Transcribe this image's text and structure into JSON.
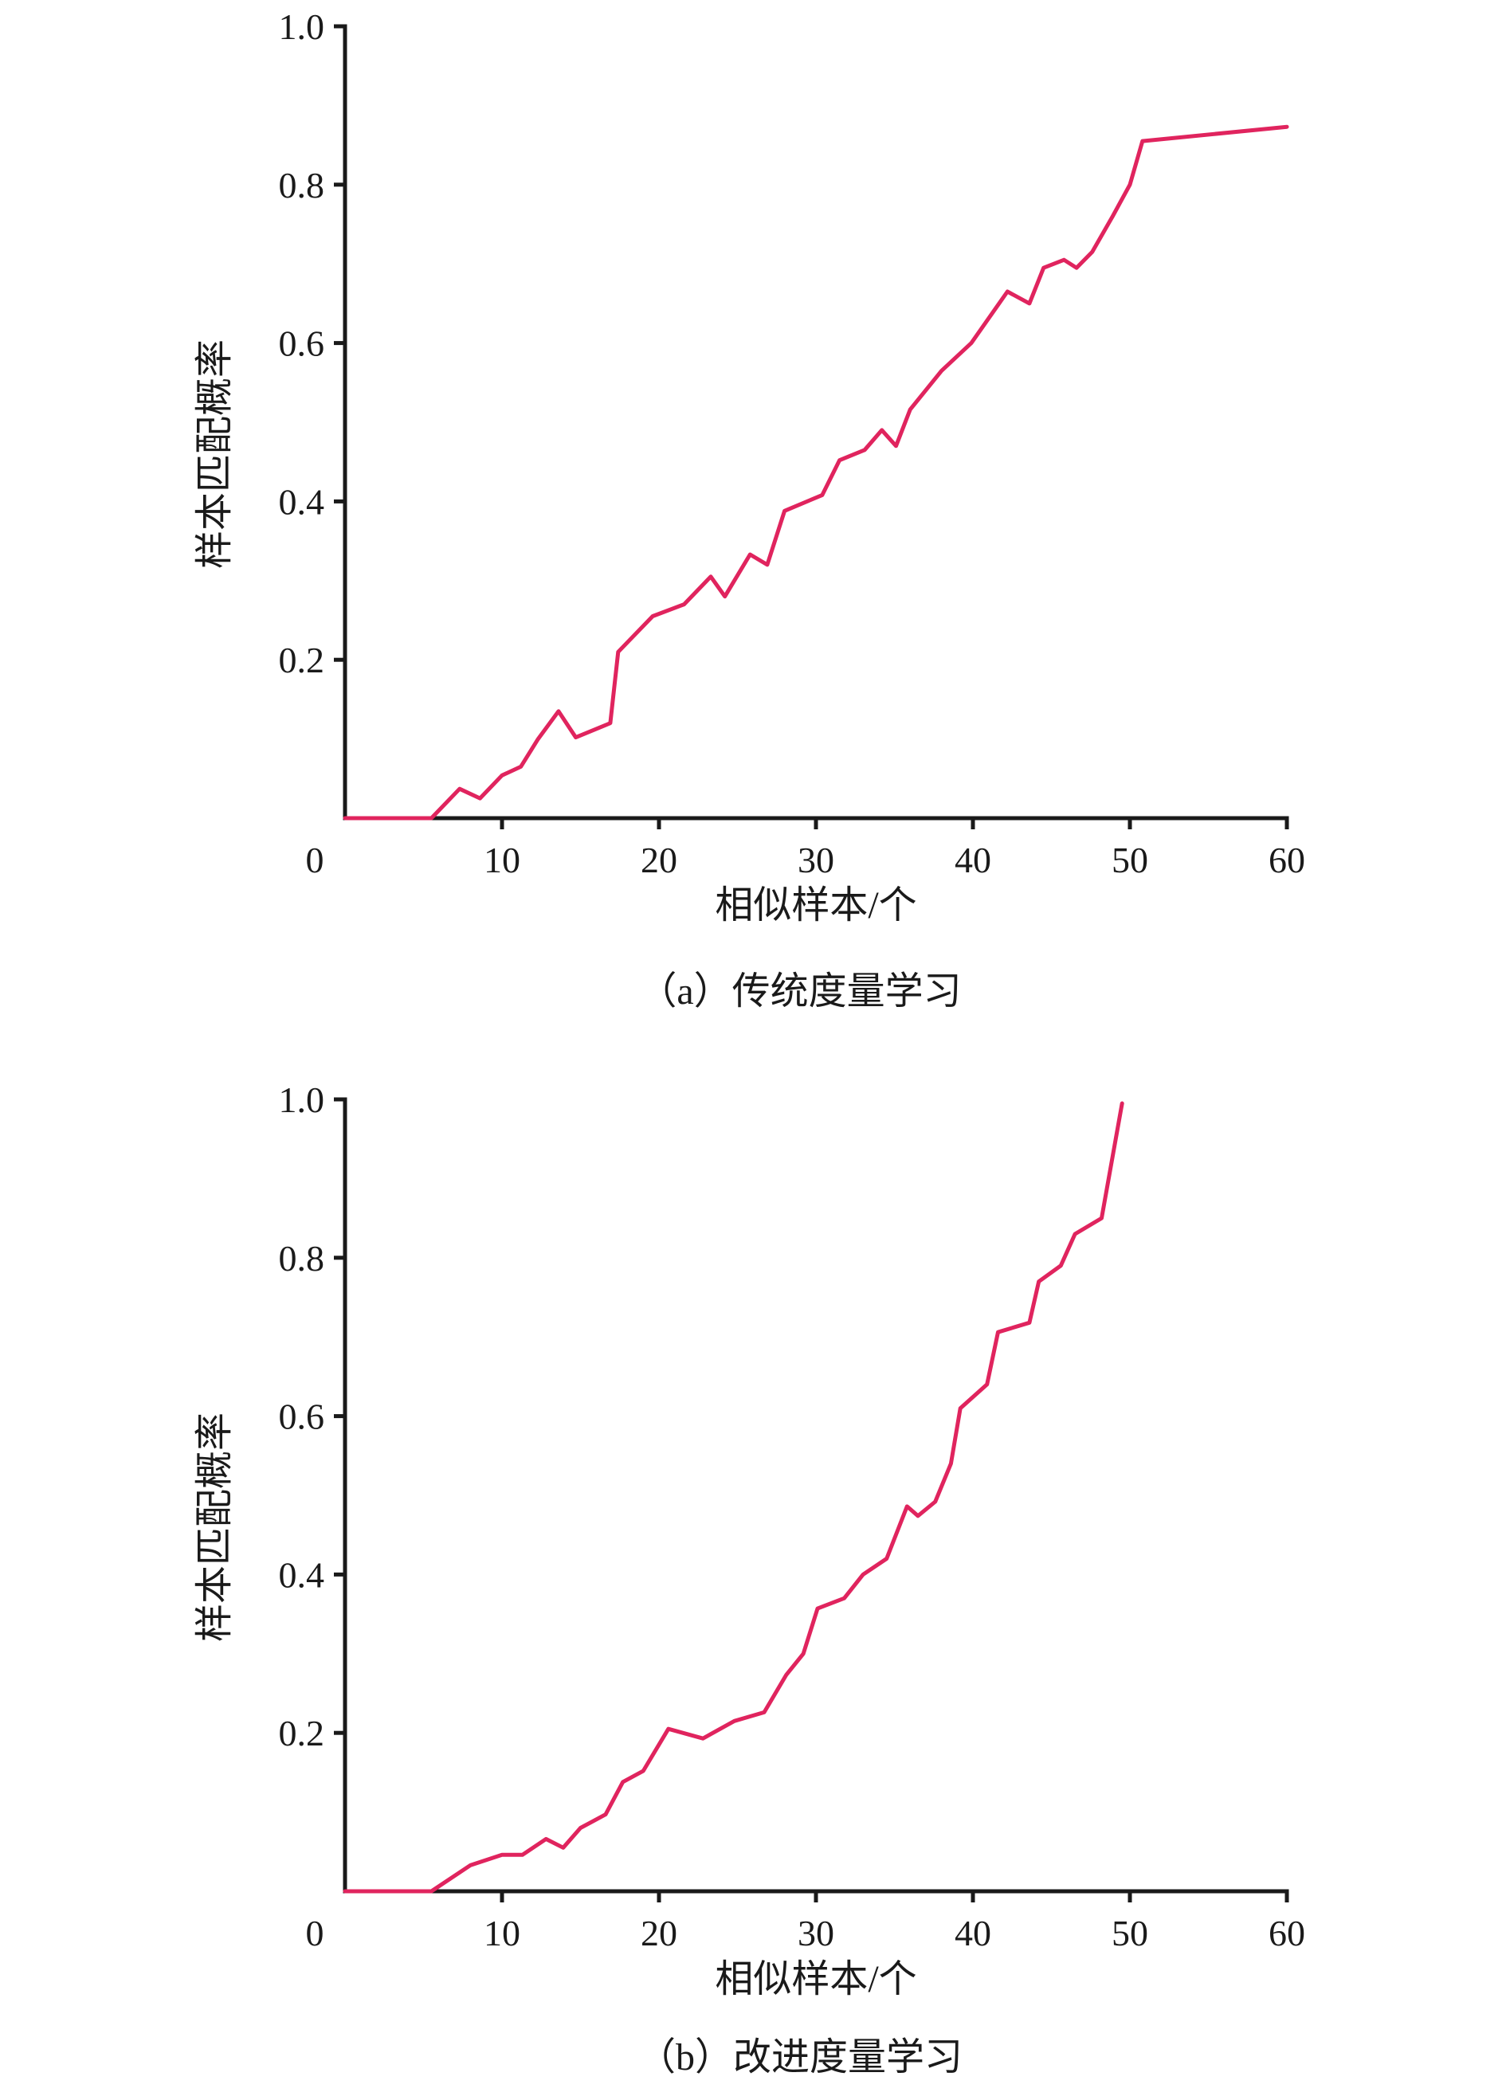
{
  "chart_data": [
    {
      "type": "line",
      "caption": "（a）传统度量学习",
      "xlabel": "相似样本/个",
      "ylabel": "样本匹配概率",
      "xlim": [
        0,
        60
      ],
      "ylim": [
        0,
        1.0
      ],
      "x_ticks": [
        0,
        10,
        20,
        30,
        40,
        50,
        60
      ],
      "x_tick_labels": [
        "0",
        "10",
        "20",
        "30",
        "40",
        "50",
        "60"
      ],
      "y_ticks": [
        0.2,
        0.4,
        0.6,
        0.8,
        1.0
      ],
      "y_tick_labels": [
        "0.2",
        "0.4",
        "0.6",
        "0.8",
        "1.0"
      ],
      "grid": false,
      "line_color": "#e0245e",
      "series": [
        {
          "x": [
            0,
            5.5,
            7.3,
            8.6,
            10.0,
            11.2,
            12.3,
            13.6,
            14.7,
            16.9,
            17.4,
            19.6,
            21.6,
            23.3,
            24.2,
            25.8,
            26.9,
            28.0,
            30.4,
            31.5,
            33.1,
            34.2,
            35.1,
            36.0,
            38.0,
            39.9,
            42.2,
            43.6,
            44.5,
            45.8,
            46.6,
            47.6,
            48.9,
            50.0,
            50.8,
            60
          ],
          "y": [
            0,
            0,
            0.037,
            0.025,
            0.054,
            0.065,
            0.1,
            0.135,
            0.102,
            0.12,
            0.21,
            0.255,
            0.27,
            0.305,
            0.28,
            0.333,
            0.32,
            0.388,
            0.408,
            0.452,
            0.465,
            0.49,
            0.47,
            0.516,
            0.565,
            0.6,
            0.665,
            0.65,
            0.695,
            0.705,
            0.695,
            0.715,
            0.76,
            0.8,
            0.855,
            0.873
          ]
        }
      ]
    },
    {
      "type": "line",
      "caption": "（b）改进度量学习",
      "xlabel": "相似样本/个",
      "ylabel": "样本匹配概率",
      "xlim": [
        0,
        60
      ],
      "ylim": [
        0,
        1.0
      ],
      "x_ticks": [
        0,
        10,
        20,
        30,
        40,
        50,
        60
      ],
      "x_tick_labels": [
        "0",
        "10",
        "20",
        "30",
        "40",
        "50",
        "60"
      ],
      "y_ticks": [
        0.2,
        0.4,
        0.6,
        0.8,
        1.0
      ],
      "y_tick_labels": [
        "0.2",
        "0.4",
        "0.6",
        "0.8",
        "1.0"
      ],
      "grid": false,
      "line_color": "#e0245e",
      "series": [
        {
          "x": [
            0,
            5.5,
            8.0,
            10.0,
            11.3,
            12.8,
            13.9,
            15.0,
            16.6,
            17.7,
            19.0,
            20.6,
            22.8,
            24.8,
            26.7,
            28.1,
            29.2,
            30.1,
            31.8,
            33.0,
            34.5,
            35.8,
            36.5,
            37.6,
            38.6,
            39.2,
            40.9,
            41.6,
            43.6,
            44.2,
            45.6,
            46.5,
            48.2,
            49.5
          ],
          "y": [
            0,
            0,
            0.033,
            0.046,
            0.046,
            0.066,
            0.055,
            0.08,
            0.097,
            0.138,
            0.152,
            0.205,
            0.193,
            0.215,
            0.226,
            0.273,
            0.3,
            0.357,
            0.37,
            0.4,
            0.42,
            0.486,
            0.474,
            0.492,
            0.54,
            0.61,
            0.64,
            0.706,
            0.718,
            0.77,
            0.79,
            0.83,
            0.85,
            0.995
          ]
        }
      ]
    }
  ]
}
